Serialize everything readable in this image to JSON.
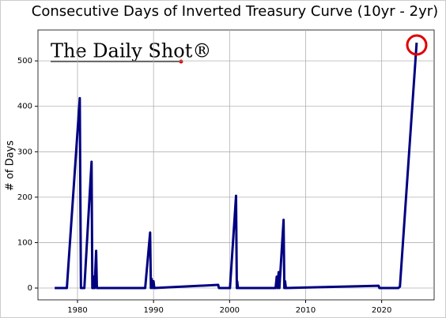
{
  "chart_data": {
    "type": "line",
    "title": "Consecutive Days of Inverted Treasury Curve (10yr - 2yr)",
    "ylabel": "# of Days",
    "annotation": "The Daily Shot®",
    "series": [
      {
        "name": "Consecutive days",
        "color": "#000080",
        "x": [
          1977.0,
          1978.6,
          1980.3,
          1980.45,
          1980.9,
          1981.85,
          1981.95,
          1982.05,
          1982.15,
          1982.25,
          1982.45,
          1982.55,
          1988.9,
          1989.55,
          1989.65,
          1989.75,
          1989.85,
          1990.0,
          1990.1,
          1998.5,
          1998.6,
          2000.05,
          2000.85,
          2000.95,
          2001.0,
          2001.1,
          2006.05,
          2006.2,
          2006.3,
          2006.45,
          2006.55,
          2007.1,
          2007.2,
          2007.3,
          2007.4,
          2019.6,
          2019.7,
          2022.2,
          2022.4,
          2024.6
        ],
        "values": [
          0,
          0,
          418,
          0,
          0,
          278,
          0,
          0,
          25,
          0,
          82,
          0,
          0,
          122,
          0,
          20,
          0,
          15,
          0,
          7,
          0,
          0,
          203,
          0,
          15,
          0,
          0,
          25,
          0,
          35,
          0,
          150,
          0,
          15,
          0,
          5,
          0,
          0,
          3,
          540
        ]
      }
    ],
    "xlim": [
      1974.8,
      2026.9
    ],
    "xticks": [
      1980,
      1990,
      2000,
      2010,
      2020
    ],
    "ylim": [
      -26,
      568
    ],
    "yticks": [
      0,
      100,
      200,
      300,
      400,
      500
    ],
    "grid": true
  }
}
